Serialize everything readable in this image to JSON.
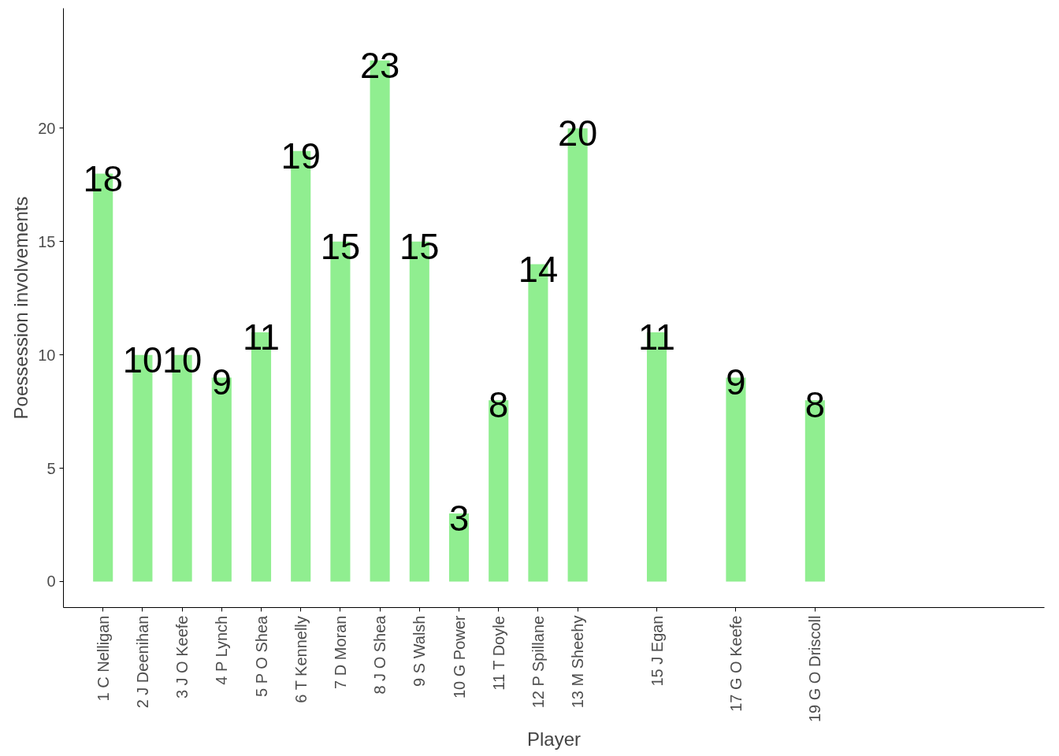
{
  "chart_data": {
    "type": "bar",
    "xlabel": "Player",
    "ylabel": "Poessession involvements",
    "x": [
      1,
      2,
      3,
      4,
      5,
      6,
      7,
      8,
      9,
      10,
      11,
      12,
      13,
      15,
      17,
      19
    ],
    "values": [
      18,
      10,
      10,
      9,
      11,
      19,
      15,
      23,
      15,
      3,
      8,
      14,
      20,
      11,
      9,
      8
    ],
    "color": "#90ee90",
    "data_labels": true,
    "grid": false,
    "xlim": [
      0,
      24.8
    ],
    "xticks": [
      {
        "value": 1,
        "label": "1 C Nelligan"
      },
      {
        "value": 2,
        "label": "2 J Deenihan"
      },
      {
        "value": 3,
        "label": "3 J O Keefe"
      },
      {
        "value": 4,
        "label": "4 P Lynch"
      },
      {
        "value": 5,
        "label": "5 P O Shea"
      },
      {
        "value": 6,
        "label": "6 T Kennelly"
      },
      {
        "value": 7,
        "label": "7 D Moran"
      },
      {
        "value": 8,
        "label": "8 J O Shea"
      },
      {
        "value": 9,
        "label": "9 S Walsh"
      },
      {
        "value": 10,
        "label": "10 G Power"
      },
      {
        "value": 11,
        "label": "11 T Doyle"
      },
      {
        "value": 12,
        "label": "12 P Spillane"
      },
      {
        "value": 13,
        "label": "13 M Sheehy"
      },
      {
        "value": 15,
        "label": "15 J Egan"
      },
      {
        "value": 17,
        "label": "17 G O Keefe"
      },
      {
        "value": 19,
        "label": "19 G O Driscoll"
      }
    ],
    "ylim": [
      -1.15,
      25.3
    ],
    "yticks": [
      0,
      5,
      10,
      15,
      20
    ]
  }
}
